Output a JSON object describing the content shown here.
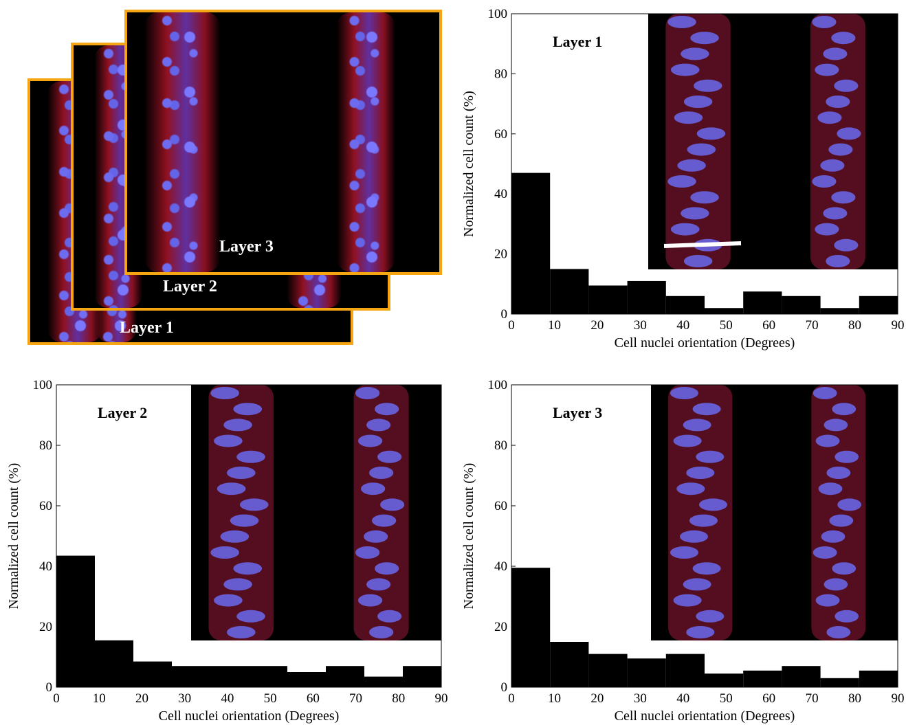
{
  "stack": {
    "labels": [
      "Layer 1",
      "Layer 2",
      "Layer 3"
    ],
    "frame_color": "#f5a713"
  },
  "chart_data": [
    {
      "type": "bar",
      "inset_label": "Layer 1",
      "xlabel": "Cell nuclei orientation (Degrees)",
      "ylabel": "Normalized cell count (%)",
      "xlim": [
        0,
        90
      ],
      "ylim": [
        0,
        100
      ],
      "xticks": [
        0,
        10,
        20,
        30,
        40,
        50,
        60,
        70,
        80,
        90
      ],
      "yticks": [
        0,
        20,
        40,
        60,
        80,
        100
      ],
      "bin_edges": [
        0,
        9,
        18,
        27,
        36,
        45,
        54,
        63,
        72,
        81,
        90
      ],
      "values": [
        47,
        15,
        9.5,
        11,
        6,
        2,
        7.5,
        6,
        2,
        6
      ]
    },
    {
      "type": "bar",
      "inset_label": "Layer 2",
      "xlabel": "Cell nuclei orientation (Degrees)",
      "ylabel": "Normalized cell count (%)",
      "xlim": [
        0,
        90
      ],
      "ylim": [
        0,
        100
      ],
      "xticks": [
        0,
        10,
        20,
        30,
        40,
        50,
        60,
        70,
        80,
        90
      ],
      "yticks": [
        0,
        20,
        40,
        60,
        80,
        100
      ],
      "bin_edges": [
        0,
        9,
        18,
        27,
        36,
        45,
        54,
        63,
        72,
        81,
        90
      ],
      "values": [
        43.5,
        15.5,
        8.5,
        7,
        7,
        7,
        5,
        7,
        3.5,
        7
      ]
    },
    {
      "type": "bar",
      "inset_label": "Layer 3",
      "xlabel": "Cell nuclei orientation (Degrees)",
      "ylabel": "Normalized cell count (%)",
      "xlim": [
        0,
        90
      ],
      "ylim": [
        0,
        100
      ],
      "xticks": [
        0,
        10,
        20,
        30,
        40,
        50,
        60,
        70,
        80,
        90
      ],
      "yticks": [
        0,
        20,
        40,
        60,
        80,
        100
      ],
      "bin_edges": [
        0,
        9,
        18,
        27,
        36,
        45,
        54,
        63,
        72,
        81,
        90
      ],
      "values": [
        39.5,
        15,
        11,
        9.5,
        11,
        4.5,
        5.5,
        7,
        3,
        5.5
      ]
    }
  ]
}
